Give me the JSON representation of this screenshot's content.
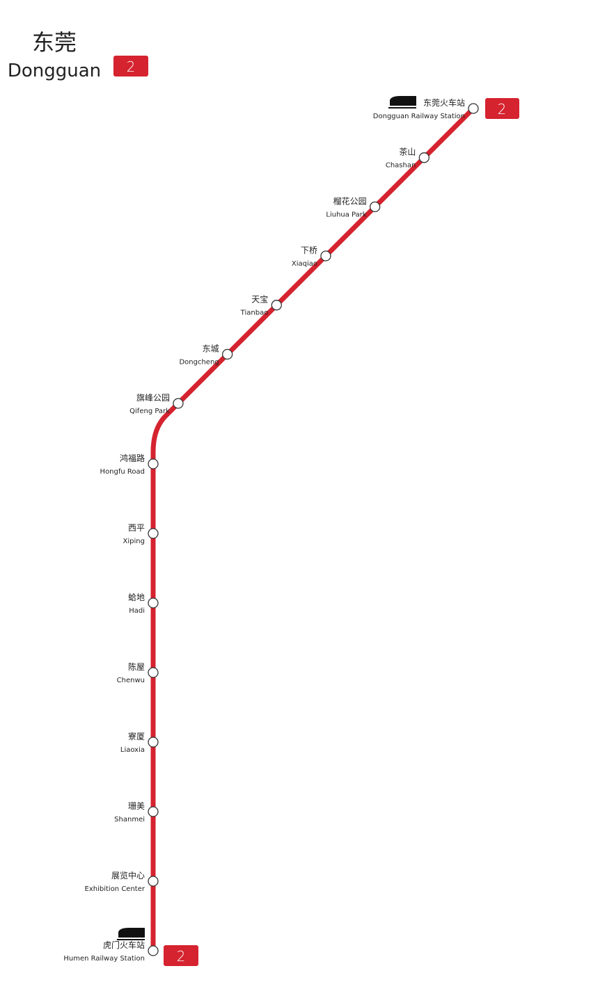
{
  "header": {
    "title_cn": "东莞",
    "title_en": "Dongguan",
    "badge": "2"
  },
  "line": {
    "start_badge": "2",
    "end_badge": "2"
  },
  "stations": [
    {
      "cn": "东莞火车站",
      "en": "Dongguan Railway Station"
    },
    {
      "cn": "茶山",
      "en": "Chashan"
    },
    {
      "cn": "榴花公园",
      "en": "Liuhua Park"
    },
    {
      "cn": "下桥",
      "en": "Xiaqiao"
    },
    {
      "cn": "天宝",
      "en": "Tianbao"
    },
    {
      "cn": "东城",
      "en": "Dongcheng"
    },
    {
      "cn": "旗峰公园",
      "en": "Qifeng Park"
    },
    {
      "cn": "鸿福路",
      "en": "Hongfu Road"
    },
    {
      "cn": "西平",
      "en": "Xiping"
    },
    {
      "cn": "蛤地",
      "en": "Hadi"
    },
    {
      "cn": "陈屋",
      "en": "Chenwu"
    },
    {
      "cn": "寮厦",
      "en": "Liaoxia"
    },
    {
      "cn": "珊美",
      "en": "Shanmei"
    },
    {
      "cn": "展览中心",
      "en": "Exhibition Center"
    },
    {
      "cn": "虎门火车站",
      "en": "Humen Railway Station"
    }
  ]
}
